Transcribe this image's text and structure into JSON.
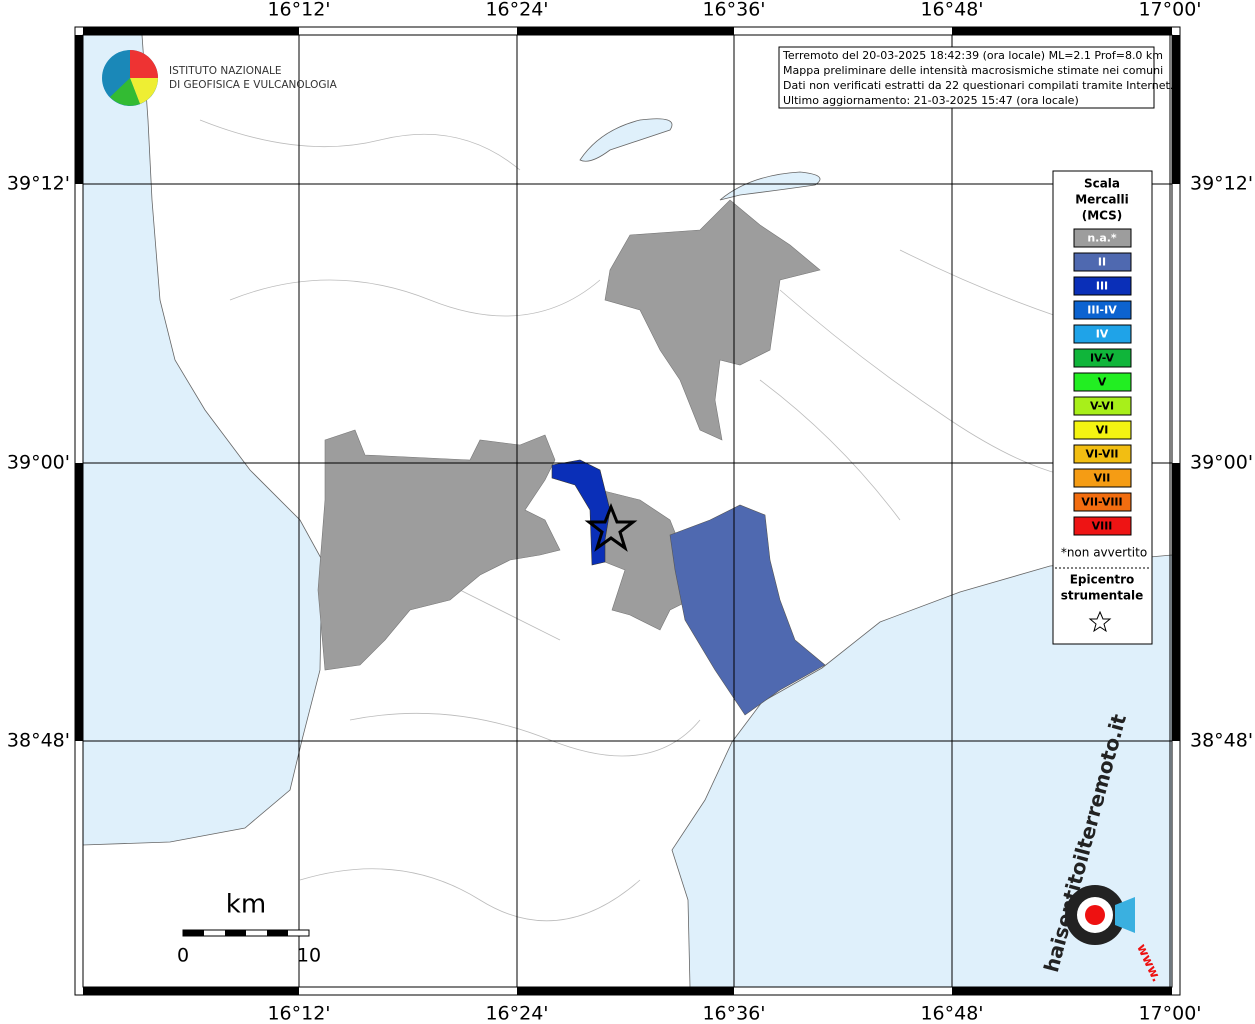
{
  "map": {
    "lon_labels": [
      "16°12'",
      "16°24'",
      "16°36'",
      "16°48'",
      "17°00'"
    ],
    "lat_labels": [
      "39°12'",
      "39°00'",
      "38°48'"
    ],
    "info_box": [
      "Terremoto del 20-03-2025 18:42:39 (ora locale) ML=2.1 Prof=8.0 km",
      "Mappa preliminare delle intensità macrosismiche stimate nei comuni",
      "Dati non verificati estratti da 22 questionari compilati tramite Internet.",
      "Ultimo aggiornamento: 21-03-2025 15:47 (ora locale)"
    ],
    "logo": [
      "ISTITUTO NAZIONALE",
      "DI GEOFISICA E VULCANOLOGIA"
    ],
    "legend": {
      "title": [
        "Scala",
        "Mercalli",
        "(MCS)"
      ],
      "classes": [
        {
          "label": "n.a.*",
          "color": "#9d9d9d"
        },
        {
          "label": "II",
          "color": "#4f69b0"
        },
        {
          "label": "III",
          "color": "#0a2fb8"
        },
        {
          "label": "III-IV",
          "color": "#0c63d0"
        },
        {
          "label": "IV",
          "color": "#1fa3e8"
        },
        {
          "label": "IV-V",
          "color": "#10b53a"
        },
        {
          "label": "V",
          "color": "#22ee22"
        },
        {
          "label": "V-VI",
          "color": "#a8ef1a"
        },
        {
          "label": "VI",
          "color": "#f4f412"
        },
        {
          "label": "VI-VII",
          "color": "#f2be12"
        },
        {
          "label": "VII",
          "color": "#f59c14"
        },
        {
          "label": "VII-VIII",
          "color": "#f26d10"
        },
        {
          "label": "VIII",
          "color": "#ee1414"
        }
      ],
      "footnote": "*non avvertito",
      "epicenter": [
        "Epicentro",
        "strumentale"
      ]
    },
    "scale_bar": {
      "unit": "km",
      "labels": [
        "0",
        "10"
      ]
    },
    "badge": {
      "text": "haisentitoilterremoto.it",
      "www": "www."
    }
  }
}
